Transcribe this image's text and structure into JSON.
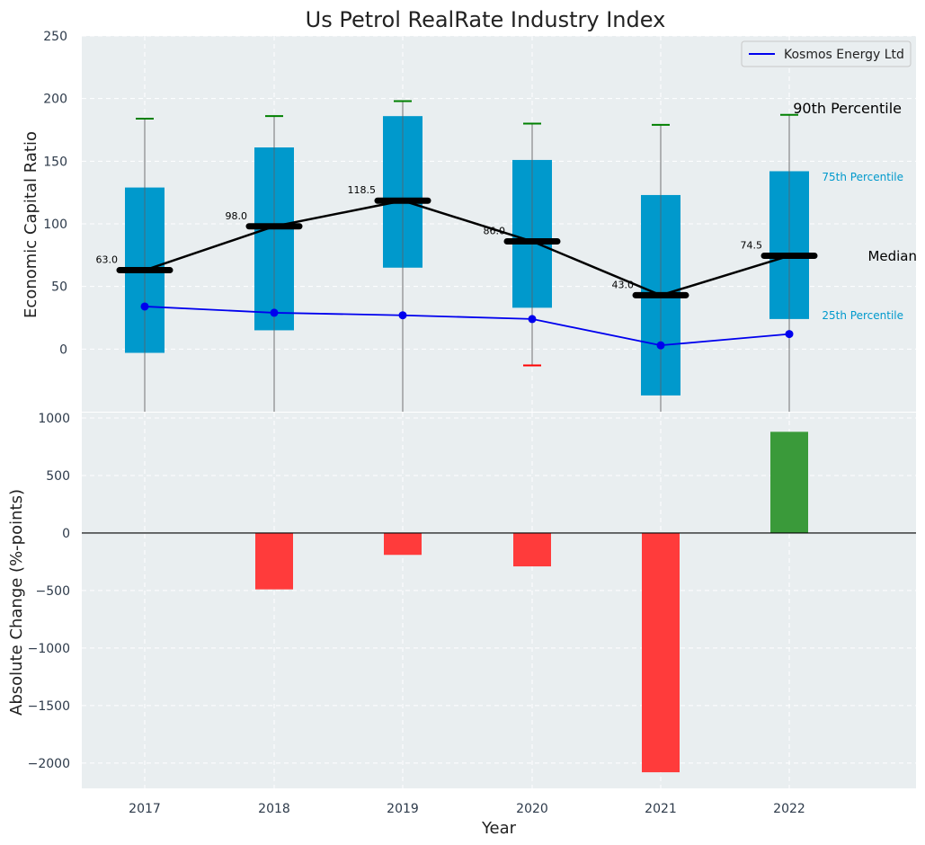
{
  "chart_data": [
    {
      "type": "box",
      "title": "Us Petrol RealRate Industry Index",
      "ylabel": "Economic Capital Ratio",
      "xlabel": "",
      "ylim": [
        -50,
        250
      ],
      "yticks": [
        0,
        50,
        100,
        150,
        200,
        250
      ],
      "grid": true,
      "categories": [
        "2017",
        "2018",
        "2019",
        "2020",
        "2021",
        "2022"
      ],
      "boxes": [
        {
          "year": "2017",
          "p10": -50,
          "p25": -3,
          "median": 63.0,
          "p75": 129,
          "p90": 184,
          "median_label": "63.0"
        },
        {
          "year": "2018",
          "p10": -50,
          "p25": 15,
          "median": 98.0,
          "p75": 161,
          "p90": 186,
          "median_label": "98.0"
        },
        {
          "year": "2019",
          "p10": -50,
          "p25": 65,
          "median": 118.5,
          "p75": 186,
          "p90": 198,
          "median_label": "118.5"
        },
        {
          "year": "2020",
          "p10": -13,
          "p25": 33,
          "median": 86.0,
          "p75": 151,
          "p90": 180,
          "median_label": "86.0"
        },
        {
          "year": "2021",
          "p10": -50,
          "p25": -37,
          "median": 43.0,
          "p75": 123,
          "p90": 179,
          "median_label": "43.0"
        },
        {
          "year": "2022",
          "p10": -50,
          "p25": 24,
          "median": 74.5,
          "p75": 142,
          "p90": 187,
          "median_label": "74.5"
        }
      ],
      "series": [
        {
          "name": "Kosmos Energy Ltd",
          "color": "#0000ee",
          "values": [
            34,
            29,
            27,
            24,
            3,
            12
          ]
        }
      ],
      "legend": "top-right",
      "annotations": {
        "p90": "90th Percentile",
        "p75": "75th Percentile",
        "median": "Median",
        "p25": "25th Percentile"
      },
      "colors": {
        "box": "#0099cc",
        "median": "#000000",
        "p90_cap": "#008000",
        "p10_cap_low": "#ff0000",
        "whisker": "#888888"
      }
    },
    {
      "type": "bar",
      "ylabel": "Absolute Change (%-points)",
      "xlabel": "Year",
      "ylim": [
        -2220,
        1000
      ],
      "yticks": [
        -2000,
        -1500,
        -1000,
        -500,
        0,
        500,
        1000
      ],
      "categories": [
        "2017",
        "2018",
        "2019",
        "2020",
        "2021",
        "2022"
      ],
      "values": [
        0,
        -490,
        -190,
        -290,
        -2080,
        880
      ],
      "colors": {
        "positive": "#3a9a3a",
        "negative": "#ff3b3b"
      },
      "grid": true
    }
  ]
}
